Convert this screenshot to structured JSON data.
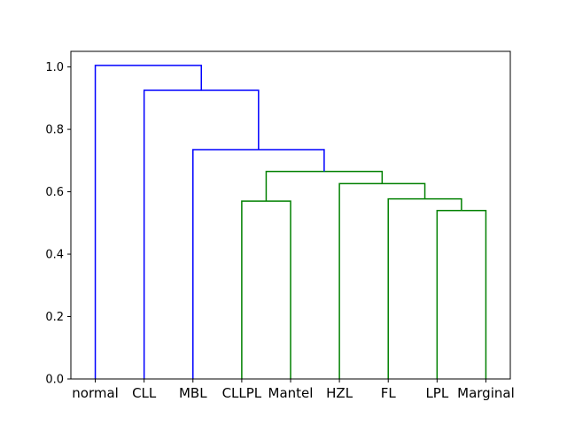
{
  "chart_data": {
    "type": "dendrogram",
    "title": "",
    "xlabel": "",
    "ylabel": "",
    "ylim": [
      0,
      1.05
    ],
    "yticks": [
      "0.0",
      "0.2",
      "0.4",
      "0.6",
      "0.8",
      "1.0"
    ],
    "leaves": [
      "normal",
      "CLL",
      "MBL",
      "CLLPL",
      "Mantel",
      "HZL",
      "FL",
      "LPL",
      "Marginal"
    ],
    "merges": [
      {
        "id": "m1",
        "left": "LPL",
        "right": "Marginal",
        "height": 0.54,
        "color": "#008000"
      },
      {
        "id": "m2",
        "left": "FL",
        "right": "m1",
        "height": 0.577,
        "color": "#008000"
      },
      {
        "id": "m3",
        "left": "HZL",
        "right": "m2",
        "height": 0.626,
        "color": "#008000"
      },
      {
        "id": "m4",
        "left": "CLLPL",
        "right": "Mantel",
        "height": 0.57,
        "color": "#008000"
      },
      {
        "id": "m5",
        "left": "m4",
        "right": "m3",
        "height": 0.665,
        "color": "#008000"
      },
      {
        "id": "m6",
        "left": "MBL",
        "right": "m5",
        "height": 0.735,
        "color": "#0000ff"
      },
      {
        "id": "m7",
        "left": "CLL",
        "right": "m6",
        "height": 0.925,
        "color": "#0000ff"
      },
      {
        "id": "m8",
        "left": "normal",
        "right": "m7",
        "height": 1.005,
        "color": "#0000ff"
      }
    ],
    "grid": false,
    "legend": "none"
  }
}
